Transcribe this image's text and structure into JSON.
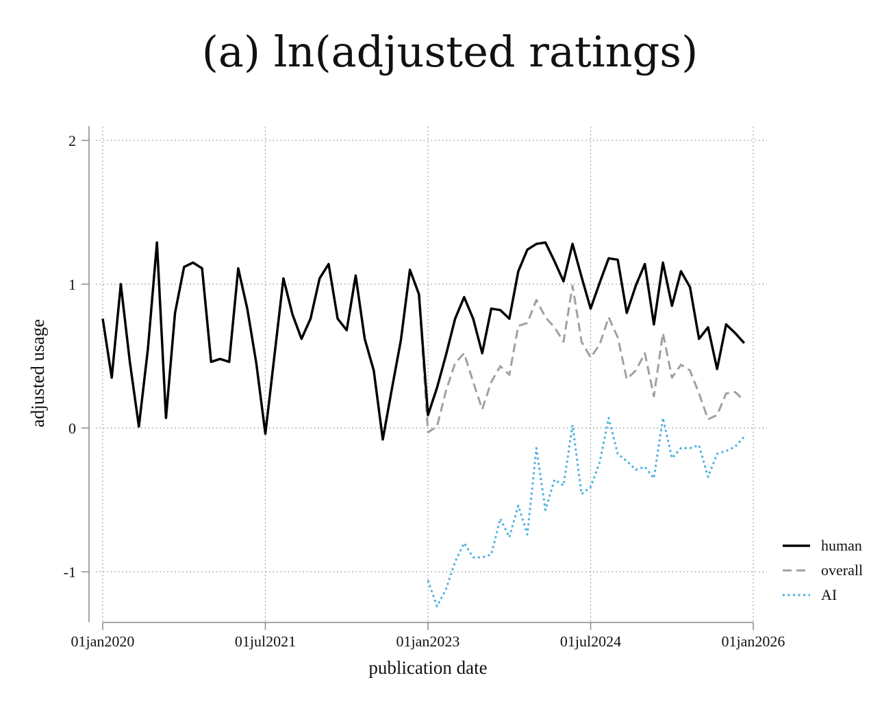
{
  "chart_data": {
    "type": "line",
    "title": "(a) ln(adjusted ratings)",
    "xlabel": "publication date",
    "ylabel": "adjusted usage",
    "x_ticks": [
      {
        "label": "01jan2020",
        "value": 0
      },
      {
        "label": "01jul2021",
        "value": 18
      },
      {
        "label": "01jan2023",
        "value": 36
      },
      {
        "label": "01jul2024",
        "value": 54
      },
      {
        "label": "01jan2026",
        "value": 72
      }
    ],
    "y_ticks": [
      {
        "label": "2",
        "value": 2
      },
      {
        "label": "1",
        "value": 1
      },
      {
        "label": "0",
        "value": 0
      },
      {
        "label": "-1",
        "value": -1
      }
    ],
    "xlim": [
      0,
      72
    ],
    "ylim": [
      -1.35,
      2.1
    ],
    "grid": true,
    "legend_position": "right",
    "series": [
      {
        "name": "human",
        "color": "#000000",
        "style": "solid",
        "x0": 0,
        "values": [
          0.76,
          0.35,
          1.0,
          0.46,
          0.01,
          0.55,
          1.29,
          0.07,
          0.8,
          1.12,
          1.15,
          1.11,
          0.46,
          0.48,
          0.46,
          1.11,
          0.83,
          0.45,
          -0.04,
          0.5,
          1.04,
          0.79,
          0.62,
          0.76,
          1.04,
          1.14,
          0.76,
          0.68,
          1.06,
          0.62,
          0.4,
          -0.08,
          0.27,
          0.61,
          1.1,
          0.93,
          0.09,
          0.28,
          0.51,
          0.76,
          0.91,
          0.76,
          0.52,
          0.83,
          0.82,
          0.76,
          1.09,
          1.24,
          1.28,
          1.29,
          1.16,
          1.02,
          1.28,
          1.05,
          0.83,
          1.01,
          1.18,
          1.17,
          0.8,
          0.99,
          1.14,
          0.72,
          1.15,
          0.85,
          1.09,
          0.98,
          0.62,
          0.7,
          0.41,
          0.72,
          0.66,
          0.59
        ]
      },
      {
        "name": "overall",
        "color": "#a0a0a0",
        "style": "dashed",
        "x0": 35,
        "values": [
          0.93,
          -0.03,
          0.01,
          0.26,
          0.45,
          0.52,
          0.32,
          0.13,
          0.32,
          0.43,
          0.37,
          0.71,
          0.73,
          0.89,
          0.77,
          0.7,
          0.6,
          0.99,
          0.6,
          0.49,
          0.58,
          0.77,
          0.63,
          0.34,
          0.4,
          0.52,
          0.22,
          0.66,
          0.35,
          0.44,
          0.4,
          0.24,
          0.06,
          0.09,
          0.24,
          0.25,
          0.19
        ]
      },
      {
        "name": "AI",
        "color": "#4aafdf",
        "style": "dotted",
        "x0": 36,
        "values": [
          -1.06,
          -1.24,
          -1.12,
          -0.93,
          -0.8,
          -0.9,
          -0.9,
          -0.88,
          -0.63,
          -0.76,
          -0.54,
          -0.74,
          -0.14,
          -0.57,
          -0.36,
          -0.4,
          0.02,
          -0.46,
          -0.41,
          -0.24,
          0.07,
          -0.18,
          -0.23,
          -0.29,
          -0.27,
          -0.35,
          0.07,
          -0.21,
          -0.14,
          -0.14,
          -0.12,
          -0.34,
          -0.18,
          -0.16,
          -0.13,
          -0.06
        ]
      }
    ]
  }
}
